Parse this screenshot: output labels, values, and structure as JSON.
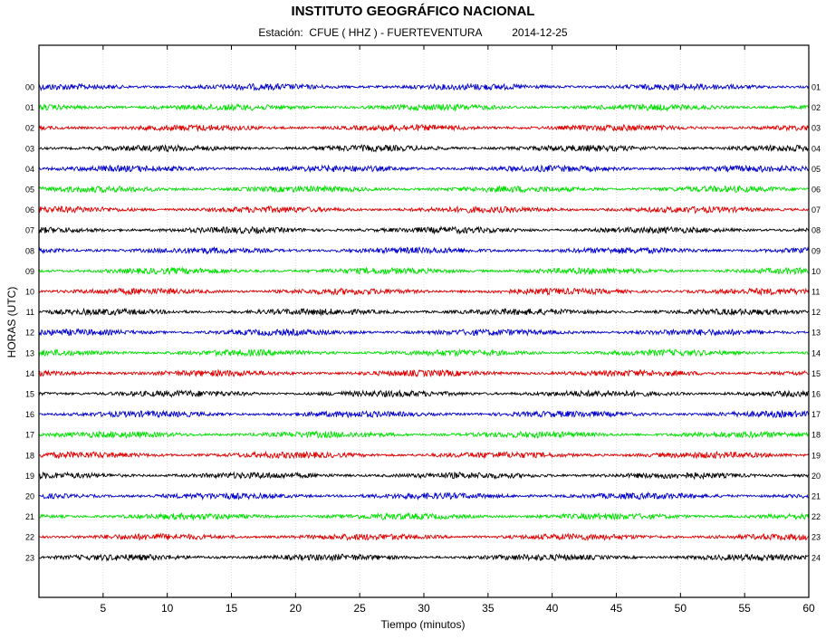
{
  "chart_data": {
    "type": "line",
    "title": "INSTITUTO GEOGRÁFICO NACIONAL",
    "subtitle": {
      "station_label": "Estación:",
      "station": "CFUE ( HHZ ) - FUERTEVENTURA",
      "date": "2014-12-25"
    },
    "xlabel": "Tiempo (minutos)",
    "ylabel": "HORAS (UTC)",
    "xlim": [
      0,
      60
    ],
    "x_ticks": [
      5,
      10,
      15,
      20,
      25,
      30,
      35,
      40,
      45,
      50,
      55,
      60
    ],
    "grid": "vertical dotted",
    "left_hour_labels": [
      "00",
      "01",
      "02",
      "03",
      "04",
      "05",
      "06",
      "07",
      "08",
      "09",
      "10",
      "11",
      "12",
      "13",
      "14",
      "15",
      "16",
      "17",
      "18",
      "19",
      "20",
      "21",
      "22",
      "23"
    ],
    "right_hour_labels": [
      "01",
      "02",
      "03",
      "04",
      "05",
      "06",
      "07",
      "08",
      "09",
      "10",
      "11",
      "12",
      "13",
      "14",
      "15",
      "16",
      "17",
      "18",
      "19",
      "20",
      "21",
      "22",
      "23",
      "24"
    ],
    "trace_colors": [
      "#0000cc",
      "#00e000",
      "#e00000",
      "#000000"
    ]
  }
}
